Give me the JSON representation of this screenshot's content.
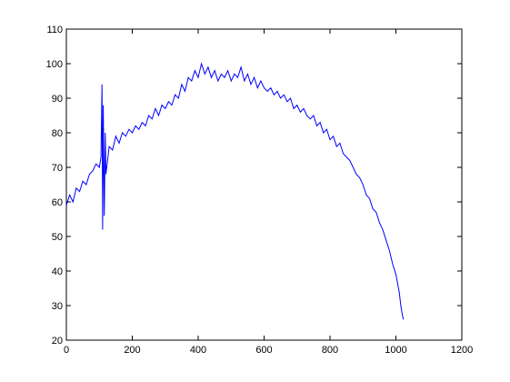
{
  "chart_data": {
    "type": "line",
    "x": [
      0,
      10,
      20,
      30,
      40,
      50,
      60,
      70,
      80,
      90,
      100,
      105,
      108,
      110,
      112,
      115,
      118,
      120,
      130,
      140,
      150,
      160,
      170,
      180,
      190,
      200,
      210,
      220,
      230,
      240,
      250,
      260,
      270,
      280,
      290,
      300,
      310,
      320,
      330,
      340,
      350,
      360,
      370,
      380,
      390,
      400,
      410,
      420,
      430,
      440,
      450,
      460,
      470,
      480,
      490,
      500,
      510,
      520,
      530,
      540,
      550,
      560,
      570,
      580,
      590,
      600,
      610,
      620,
      630,
      640,
      650,
      660,
      670,
      680,
      690,
      700,
      710,
      720,
      730,
      740,
      750,
      760,
      770,
      780,
      790,
      800,
      810,
      820,
      830,
      840,
      850,
      860,
      870,
      880,
      890,
      900,
      910,
      920,
      930,
      940,
      950,
      960,
      970,
      980,
      990,
      1000,
      1010,
      1015,
      1020,
      1023
    ],
    "series": [
      {
        "color": "#0000ff",
        "values": [
          59,
          62,
          60,
          64,
          63,
          66,
          65,
          68,
          69,
          71,
          70,
          73,
          94,
          52,
          88,
          56,
          80,
          68,
          76,
          75,
          79,
          77,
          80,
          79,
          81,
          80,
          82,
          81,
          83,
          82,
          85,
          84,
          87,
          85,
          88,
          87,
          89,
          88,
          91,
          90,
          94,
          92,
          96,
          95,
          98,
          96,
          100,
          97,
          99,
          96,
          98,
          95,
          97,
          96,
          98,
          95,
          97,
          96,
          99,
          95,
          97,
          94,
          96,
          93,
          95,
          93,
          92,
          93,
          91,
          92,
          90,
          91,
          89,
          90,
          87,
          88,
          86,
          87,
          85,
          84,
          85,
          82,
          83,
          80,
          81,
          78,
          79,
          76,
          77,
          74,
          73,
          72,
          70,
          68,
          67,
          65,
          62,
          61,
          58,
          57,
          54,
          52,
          49,
          46,
          42,
          39,
          34,
          30,
          27,
          26
        ]
      }
    ],
    "xlim": [
      0,
      1200
    ],
    "xticks": [
      0,
      200,
      400,
      600,
      800,
      1000,
      1200
    ],
    "ylim": [
      20,
      110
    ],
    "yticks": [
      20,
      30,
      40,
      50,
      60,
      70,
      80,
      90,
      100,
      110
    ]
  }
}
